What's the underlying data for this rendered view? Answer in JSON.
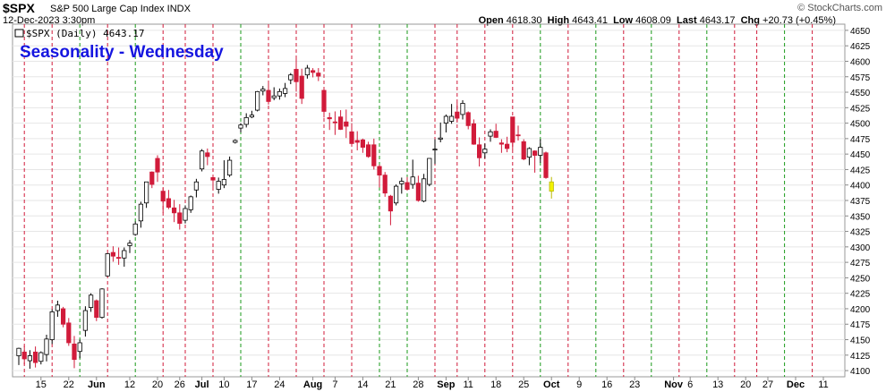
{
  "header": {
    "symbol": "$SPX",
    "name": "S&P 500 Large Cap Index INDX",
    "date": "12-Dec-2023 3:30pm",
    "open_label": "Open",
    "open": "4618.30",
    "high_label": "High",
    "high": "4643.41",
    "low_label": "Low",
    "low": "4608.09",
    "last_label": "Last",
    "last": "4643.17",
    "chg_label": "Chg",
    "chg": "+20.73 (+0.45%)",
    "brand": "© StockCharts.com"
  },
  "chart_data": {
    "type": "candlestick",
    "title": "Seasonality - Wednesday",
    "legend": "$SPX (Daily) 4643.17",
    "ylim": [
      4090,
      4660
    ],
    "y_ticks": [
      4100,
      4125,
      4150,
      4175,
      4200,
      4225,
      4250,
      4275,
      4300,
      4325,
      4350,
      4375,
      4400,
      4425,
      4450,
      4475,
      4500,
      4525,
      4550,
      4575,
      4600,
      4625,
      4650
    ],
    "x_labels": [
      {
        "label": "15",
        "index": 4
      },
      {
        "label": "22",
        "index": 9
      },
      {
        "label": "Jun",
        "index": 14,
        "bold": true
      },
      {
        "label": "12",
        "index": 20
      },
      {
        "label": "20",
        "index": 25
      },
      {
        "label": "26",
        "index": 29
      },
      {
        "label": "Jul",
        "index": 33,
        "bold": true
      },
      {
        "label": "10",
        "index": 37
      },
      {
        "label": "17",
        "index": 42
      },
      {
        "label": "24",
        "index": 47
      },
      {
        "label": "Aug",
        "index": 53,
        "bold": true
      },
      {
        "label": "7",
        "index": 57
      },
      {
        "label": "14",
        "index": 62
      },
      {
        "label": "21",
        "index": 67
      },
      {
        "label": "28",
        "index": 72
      },
      {
        "label": "Sep",
        "index": 77,
        "bold": true
      },
      {
        "label": "11",
        "index": 81
      },
      {
        "label": "18",
        "index": 86
      },
      {
        "label": "25",
        "index": 91
      },
      {
        "label": "Oct",
        "index": 96,
        "bold": true
      },
      {
        "label": "9",
        "index": 101
      },
      {
        "label": "16",
        "index": 106
      },
      {
        "label": "23",
        "index": 111
      },
      {
        "label": "Nov",
        "index": 118,
        "bold": true
      },
      {
        "label": "6",
        "index": 121
      },
      {
        "label": "13",
        "index": 126
      },
      {
        "label": "20",
        "index": 131
      },
      {
        "label": "27",
        "index": 135
      },
      {
        "label": "Dec",
        "index": 140,
        "bold": true
      },
      {
        "label": "11",
        "index": 145
      }
    ],
    "wednesdays": [
      1,
      6,
      11,
      16,
      21,
      26,
      30,
      35,
      40,
      45,
      50,
      55,
      60,
      65,
      70,
      75,
      79,
      84,
      89,
      94,
      99,
      104,
      109,
      114,
      119,
      124,
      129,
      133,
      138,
      143
    ],
    "wednesday_direction": [
      "down",
      "down",
      "up",
      "down",
      "up",
      "down",
      "down",
      "down",
      "up",
      "down",
      "down",
      "down",
      "down",
      "up",
      "up",
      "down",
      "down",
      "down",
      "down",
      "up",
      "down",
      "up",
      "down",
      "up",
      "down",
      "up",
      "down",
      "down",
      "up",
      "down"
    ],
    "colors": {
      "up_body": "#ffffff",
      "up_outline": "#000000",
      "down": "#d11b3a",
      "last": "#f2f200",
      "wed_up": "#1a9a1a",
      "wed_down": "#d11b3a",
      "title": "#1515e0"
    },
    "candles": [
      {
        "o": 4124,
        "h": 4137,
        "l": 4109,
        "c": 4136
      },
      {
        "o": 4130,
        "h": 4140,
        "l": 4110,
        "c": 4119
      },
      {
        "o": 4116,
        "h": 4133,
        "l": 4103,
        "c": 4124
      },
      {
        "o": 4130,
        "h": 4139,
        "l": 4105,
        "c": 4113
      },
      {
        "o": 4115,
        "h": 4131,
        "l": 4110,
        "c": 4129
      },
      {
        "o": 4126,
        "h": 4158,
        "l": 4115,
        "c": 4151
      },
      {
        "o": 4150,
        "h": 4199,
        "l": 4143,
        "c": 4195
      },
      {
        "o": 4197,
        "h": 4213,
        "l": 4187,
        "c": 4206
      },
      {
        "o": 4200,
        "h": 4203,
        "l": 4170,
        "c": 4175
      },
      {
        "o": 4177,
        "h": 4185,
        "l": 4140,
        "c": 4145
      },
      {
        "o": 4143,
        "h": 4156,
        "l": 4104,
        "c": 4118
      },
      {
        "o": 4131,
        "h": 4150,
        "l": 4120,
        "c": 4145
      },
      {
        "o": 4165,
        "h": 4204,
        "l": 4155,
        "c": 4197
      },
      {
        "o": 4202,
        "h": 4225,
        "l": 4195,
        "c": 4222
      },
      {
        "o": 4213,
        "h": 4215,
        "l": 4180,
        "c": 4186
      },
      {
        "o": 4186,
        "h": 4233,
        "l": 4184,
        "c": 4232
      },
      {
        "o": 4253,
        "h": 4290,
        "l": 4252,
        "c": 4289
      },
      {
        "o": 4291,
        "h": 4301,
        "l": 4276,
        "c": 4285
      },
      {
        "o": 4283,
        "h": 4299,
        "l": 4271,
        "c": 4282
      },
      {
        "o": 4282,
        "h": 4299,
        "l": 4268,
        "c": 4294
      },
      {
        "o": 4302,
        "h": 4311,
        "l": 4290,
        "c": 4306
      },
      {
        "o": 4320,
        "h": 4341,
        "l": 4318,
        "c": 4337
      },
      {
        "o": 4342,
        "h": 4373,
        "l": 4331,
        "c": 4369
      },
      {
        "o": 4371,
        "h": 4405,
        "l": 4363,
        "c": 4405
      },
      {
        "o": 4421,
        "h": 4422,
        "l": 4395,
        "c": 4401
      },
      {
        "o": 4443,
        "h": 4448,
        "l": 4405,
        "c": 4421
      },
      {
        "o": 4390,
        "h": 4395,
        "l": 4355,
        "c": 4374
      },
      {
        "o": 4378,
        "h": 4392,
        "l": 4361,
        "c": 4364
      },
      {
        "o": 4363,
        "h": 4376,
        "l": 4340,
        "c": 4355
      },
      {
        "o": 4355,
        "h": 4369,
        "l": 4328,
        "c": 4338
      },
      {
        "o": 4343,
        "h": 4367,
        "l": 4338,
        "c": 4362
      },
      {
        "o": 4360,
        "h": 4383,
        "l": 4355,
        "c": 4381
      },
      {
        "o": 4392,
        "h": 4410,
        "l": 4380,
        "c": 4405
      },
      {
        "o": 4426,
        "h": 4458,
        "l": 4422,
        "c": 4455
      },
      {
        "o": 4452,
        "h": 4459,
        "l": 4432,
        "c": 4446
      },
      {
        "o": 4412,
        "h": 4415,
        "l": 4395,
        "c": 4408
      },
      {
        "o": 4393,
        "h": 4412,
        "l": 4386,
        "c": 4406
      },
      {
        "o": 4400,
        "h": 4440,
        "l": 4395,
        "c": 4409
      },
      {
        "o": 4416,
        "h": 4446,
        "l": 4413,
        "c": 4440
      },
      {
        "o": 4469,
        "h": 4474,
        "l": 4467,
        "c": 4472
      },
      {
        "o": 4492,
        "h": 4500,
        "l": 4485,
        "c": 4497
      },
      {
        "o": 4498,
        "h": 4516,
        "l": 4493,
        "c": 4509
      },
      {
        "o": 4510,
        "h": 4520,
        "l": 4508,
        "c": 4513
      },
      {
        "o": 4521,
        "h": 4552,
        "l": 4519,
        "c": 4551
      },
      {
        "o": 4552,
        "h": 4560,
        "l": 4545,
        "c": 4555
      },
      {
        "o": 4553,
        "h": 4566,
        "l": 4530,
        "c": 4535
      },
      {
        "o": 4541,
        "h": 4558,
        "l": 4537,
        "c": 4544
      },
      {
        "o": 4544,
        "h": 4556,
        "l": 4538,
        "c": 4551
      },
      {
        "o": 4548,
        "h": 4565,
        "l": 4542,
        "c": 4556
      },
      {
        "o": 4570,
        "h": 4581,
        "l": 4563,
        "c": 4578
      },
      {
        "o": 4587,
        "h": 4607,
        "l": 4551,
        "c": 4567
      },
      {
        "o": 4576,
        "h": 4588,
        "l": 4531,
        "c": 4540
      },
      {
        "o": 4578,
        "h": 4594,
        "l": 4572,
        "c": 4589
      },
      {
        "o": 4585,
        "h": 4589,
        "l": 4574,
        "c": 4582
      },
      {
        "o": 4581,
        "h": 4589,
        "l": 4568,
        "c": 4576
      },
      {
        "o": 4553,
        "h": 4552,
        "l": 4509,
        "c": 4519
      },
      {
        "o": 4509,
        "h": 4517,
        "l": 4489,
        "c": 4507
      },
      {
        "o": 4502,
        "h": 4519,
        "l": 4481,
        "c": 4501
      },
      {
        "o": 4510,
        "h": 4521,
        "l": 4489,
        "c": 4490
      },
      {
        "o": 4502,
        "h": 4522,
        "l": 4476,
        "c": 4495
      },
      {
        "o": 4486,
        "h": 4500,
        "l": 4462,
        "c": 4467
      },
      {
        "o": 4472,
        "h": 4487,
        "l": 4456,
        "c": 4469
      },
      {
        "o": 4473,
        "h": 4475,
        "l": 4452,
        "c": 4461
      },
      {
        "o": 4465,
        "h": 4470,
        "l": 4444,
        "c": 4446
      },
      {
        "o": 4465,
        "h": 4475,
        "l": 4425,
        "c": 4431
      },
      {
        "o": 4430,
        "h": 4433,
        "l": 4396,
        "c": 4416
      },
      {
        "o": 4416,
        "h": 4421,
        "l": 4381,
        "c": 4387
      },
      {
        "o": 4382,
        "h": 4384,
        "l": 4335,
        "c": 4358
      },
      {
        "o": 4371,
        "h": 4401,
        "l": 4367,
        "c": 4398
      },
      {
        "o": 4402,
        "h": 4412,
        "l": 4386,
        "c": 4406
      },
      {
        "o": 4404,
        "h": 4413,
        "l": 4391,
        "c": 4393
      },
      {
        "o": 4401,
        "h": 4441,
        "l": 4394,
        "c": 4413
      },
      {
        "o": 4403,
        "h": 4415,
        "l": 4373,
        "c": 4375
      },
      {
        "o": 4374,
        "h": 4418,
        "l": 4372,
        "c": 4410
      },
      {
        "o": 4401,
        "h": 4440,
        "l": 4398,
        "c": 4443
      },
      {
        "o": 4457,
        "h": 4474,
        "l": 4434,
        "c": 4458
      },
      {
        "o": 4474,
        "h": 4501,
        "l": 4469,
        "c": 4476
      },
      {
        "o": 4500,
        "h": 4514,
        "l": 4485,
        "c": 4511
      },
      {
        "o": 4503,
        "h": 4531,
        "l": 4499,
        "c": 4511
      },
      {
        "o": 4518,
        "h": 4533,
        "l": 4501,
        "c": 4508
      },
      {
        "o": 4514,
        "h": 4537,
        "l": 4506,
        "c": 4532
      },
      {
        "o": 4517,
        "h": 4519,
        "l": 4490,
        "c": 4496
      },
      {
        "o": 4499,
        "h": 4506,
        "l": 4465,
        "c": 4466
      },
      {
        "o": 4465,
        "h": 4477,
        "l": 4430,
        "c": 4444
      },
      {
        "o": 4452,
        "h": 4467,
        "l": 4443,
        "c": 4458
      },
      {
        "o": 4479,
        "h": 4490,
        "l": 4470,
        "c": 4486
      },
      {
        "o": 4487,
        "h": 4499,
        "l": 4476,
        "c": 4477
      },
      {
        "o": 4468,
        "h": 4474,
        "l": 4452,
        "c": 4466
      },
      {
        "o": 4466,
        "h": 4478,
        "l": 4453,
        "c": 4459
      },
      {
        "o": 4510,
        "h": 4510,
        "l": 4457,
        "c": 4469
      },
      {
        "o": 4481,
        "h": 4496,
        "l": 4472,
        "c": 4480
      },
      {
        "o": 4470,
        "h": 4474,
        "l": 4440,
        "c": 4442
      },
      {
        "o": 4445,
        "h": 4461,
        "l": 4432,
        "c": 4459
      },
      {
        "o": 4455,
        "h": 4456,
        "l": 4420,
        "c": 4448
      },
      {
        "o": 4448,
        "h": 4474,
        "l": 4436,
        "c": 4461
      },
      {
        "o": 4452,
        "h": 4454,
        "l": 4410,
        "c": 4412
      },
      {
        "o": 4405,
        "h": 4413,
        "l": 4378,
        "c": 4390
      }
    ]
  }
}
